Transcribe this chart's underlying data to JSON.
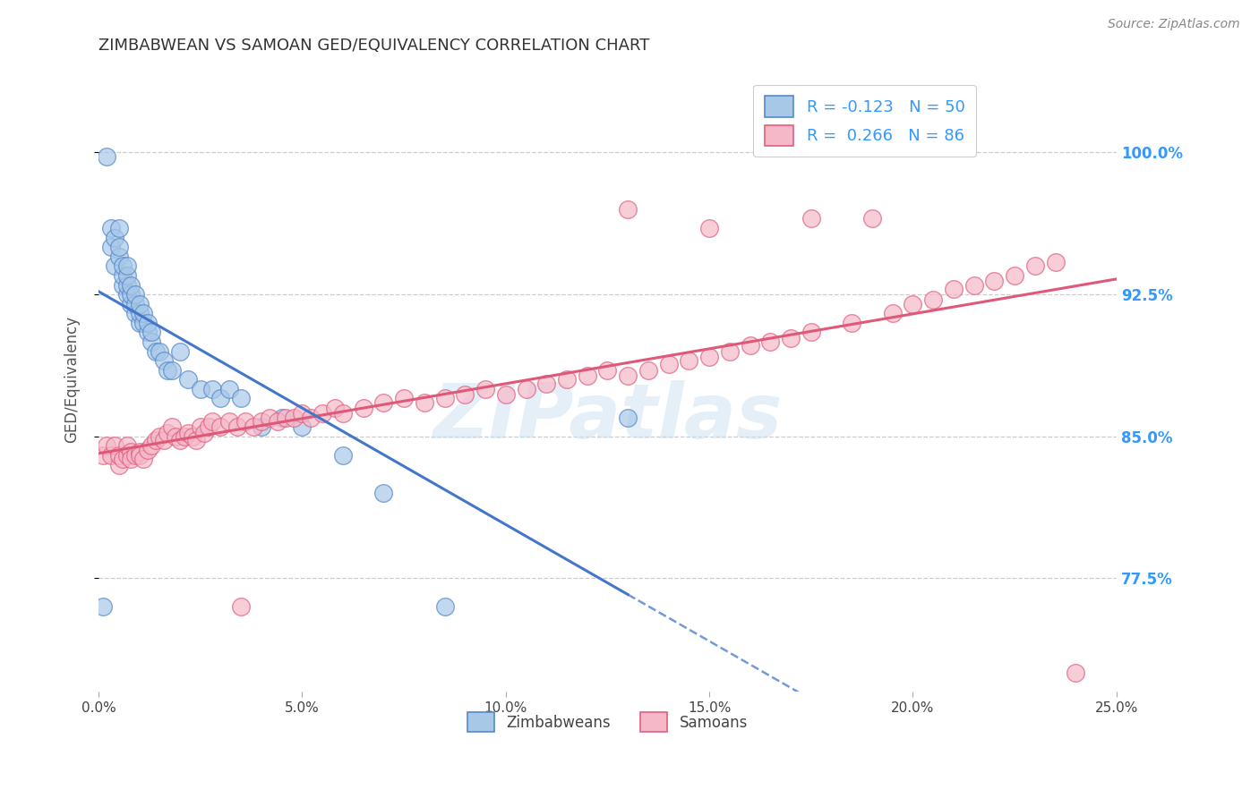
{
  "title": "ZIMBABWEAN VS SAMOAN GED/EQUIVALENCY CORRELATION CHART",
  "source": "Source: ZipAtlas.com",
  "ylabel": "GED/Equivalency",
  "ytick_labels": [
    "100.0%",
    "92.5%",
    "85.0%",
    "77.5%"
  ],
  "ytick_values": [
    1.0,
    0.925,
    0.85,
    0.775
  ],
  "xlim": [
    0.0,
    0.25
  ],
  "ylim": [
    0.715,
    1.045
  ],
  "zim_color": "#a8c8e8",
  "sam_color": "#f5b8c8",
  "blue_edge": "#5588cc",
  "pink_edge": "#e06080",
  "blue_line": "#4477cc",
  "pink_line": "#e05878",
  "background_color": "#ffffff",
  "grid_color": "#cccccc",
  "legend_r1": "R = -0.123   N = 50",
  "legend_r2": "R =  0.266   N = 86",
  "zim_x": [
    0.001,
    0.002,
    0.003,
    0.003,
    0.004,
    0.004,
    0.005,
    0.005,
    0.005,
    0.006,
    0.006,
    0.006,
    0.007,
    0.007,
    0.007,
    0.007,
    0.008,
    0.008,
    0.008,
    0.009,
    0.009,
    0.009,
    0.01,
    0.01,
    0.01,
    0.011,
    0.011,
    0.012,
    0.012,
    0.013,
    0.013,
    0.014,
    0.015,
    0.016,
    0.017,
    0.018,
    0.02,
    0.022,
    0.025,
    0.028,
    0.03,
    0.032,
    0.035,
    0.04,
    0.045,
    0.05,
    0.06,
    0.07,
    0.085,
    0.13
  ],
  "zim_y": [
    0.76,
    0.998,
    0.95,
    0.96,
    0.94,
    0.955,
    0.945,
    0.95,
    0.96,
    0.93,
    0.935,
    0.94,
    0.925,
    0.93,
    0.935,
    0.94,
    0.92,
    0.925,
    0.93,
    0.915,
    0.92,
    0.925,
    0.91,
    0.915,
    0.92,
    0.91,
    0.915,
    0.905,
    0.91,
    0.9,
    0.905,
    0.895,
    0.895,
    0.89,
    0.885,
    0.885,
    0.895,
    0.88,
    0.875,
    0.875,
    0.87,
    0.875,
    0.87,
    0.855,
    0.86,
    0.855,
    0.84,
    0.82,
    0.76,
    0.86
  ],
  "sam_x": [
    0.001,
    0.002,
    0.003,
    0.004,
    0.005,
    0.005,
    0.006,
    0.007,
    0.007,
    0.008,
    0.008,
    0.009,
    0.01,
    0.01,
    0.011,
    0.012,
    0.013,
    0.014,
    0.015,
    0.016,
    0.017,
    0.018,
    0.019,
    0.02,
    0.021,
    0.022,
    0.023,
    0.024,
    0.025,
    0.026,
    0.027,
    0.028,
    0.03,
    0.032,
    0.034,
    0.036,
    0.038,
    0.04,
    0.042,
    0.044,
    0.046,
    0.048,
    0.05,
    0.052,
    0.055,
    0.058,
    0.06,
    0.065,
    0.07,
    0.075,
    0.08,
    0.085,
    0.09,
    0.095,
    0.1,
    0.105,
    0.11,
    0.115,
    0.12,
    0.125,
    0.13,
    0.135,
    0.14,
    0.145,
    0.15,
    0.155,
    0.16,
    0.165,
    0.17,
    0.175,
    0.185,
    0.195,
    0.2,
    0.205,
    0.21,
    0.215,
    0.22,
    0.225,
    0.23,
    0.235,
    0.035,
    0.13,
    0.15,
    0.175,
    0.19,
    0.24
  ],
  "sam_y": [
    0.84,
    0.845,
    0.84,
    0.845,
    0.835,
    0.84,
    0.838,
    0.84,
    0.845,
    0.842,
    0.838,
    0.84,
    0.842,
    0.84,
    0.838,
    0.843,
    0.845,
    0.848,
    0.85,
    0.848,
    0.852,
    0.855,
    0.85,
    0.848,
    0.85,
    0.852,
    0.85,
    0.848,
    0.855,
    0.852,
    0.855,
    0.858,
    0.855,
    0.858,
    0.855,
    0.858,
    0.855,
    0.858,
    0.86,
    0.858,
    0.86,
    0.86,
    0.862,
    0.86,
    0.862,
    0.865,
    0.862,
    0.865,
    0.868,
    0.87,
    0.868,
    0.87,
    0.872,
    0.875,
    0.872,
    0.875,
    0.878,
    0.88,
    0.882,
    0.885,
    0.882,
    0.885,
    0.888,
    0.89,
    0.892,
    0.895,
    0.898,
    0.9,
    0.902,
    0.905,
    0.91,
    0.915,
    0.92,
    0.922,
    0.928,
    0.93,
    0.932,
    0.935,
    0.94,
    0.942,
    0.76,
    0.97,
    0.96,
    0.965,
    0.965,
    0.725
  ]
}
